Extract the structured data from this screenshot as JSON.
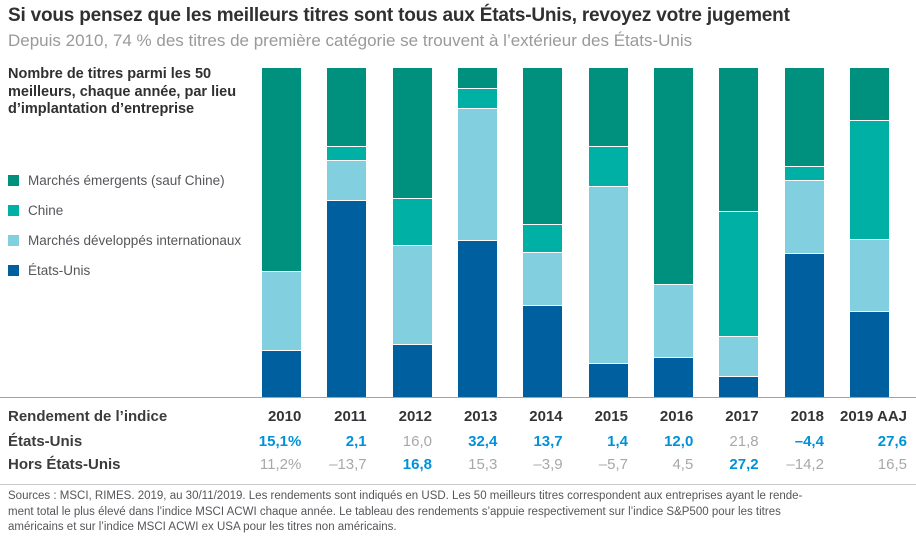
{
  "header": {
    "title": "Si vous pensez que les meilleurs titres sont tous aux États-Unis, revoyez votre jugement",
    "subtitle": "Depuis 2010, 74 % des titres de première catégorie se trouvent à l’extérieur des États-Unis"
  },
  "chart_info": {
    "heading": "Nombre de titres parmi les 50 meilleurs, chaque année, par lieu d’implantation d’entreprise"
  },
  "chart_data": {
    "type": "bar",
    "stacked": true,
    "title": "Nombre de titres parmi les 50 meilleurs, chaque année, par lieu d’implantation d’entreprise",
    "categories": [
      "2010",
      "2011",
      "2012",
      "2013",
      "2014",
      "2015",
      "2016",
      "2017",
      "2018",
      "2019 AAJ"
    ],
    "series": [
      {
        "name": "Marchés émergents (sauf Chine)",
        "color": "#00917e",
        "values": [
          31,
          12,
          20,
          3,
          24,
          12,
          33,
          22,
          15,
          8
        ]
      },
      {
        "name": "Chine",
        "color": "#00b0a5",
        "values": [
          0,
          2,
          7,
          3,
          4,
          6,
          0,
          19,
          2,
          18
        ]
      },
      {
        "name": "Marchés développés internationaux",
        "color": "#82cfe0",
        "values": [
          12,
          6,
          15,
          20,
          8,
          27,
          11,
          6,
          11,
          11
        ]
      },
      {
        "name": "États-Unis",
        "color": "#005f9e",
        "values": [
          7,
          30,
          8,
          24,
          14,
          5,
          6,
          3,
          22,
          13
        ]
      }
    ],
    "stack_order": "top-to-bottom",
    "total_per_bar": 50,
    "ylim": [
      0,
      50
    ],
    "grid": false,
    "legend_position": "left"
  },
  "table": {
    "header_label": "Rendement de l’indice",
    "columns": [
      "2010",
      "2011",
      "2012",
      "2013",
      "2014",
      "2015",
      "2016",
      "2017",
      "2018",
      "2019 AAJ"
    ],
    "rows": [
      {
        "label": "États-Unis",
        "values": [
          "15,1%",
          "2,1",
          "16,0",
          "32,4",
          "13,7",
          "1,4",
          "12,0",
          "21,8",
          "–4,4",
          "27,6"
        ],
        "highlight": [
          true,
          true,
          false,
          true,
          true,
          true,
          true,
          false,
          true,
          true
        ]
      },
      {
        "label": "Hors États-Unis",
        "values": [
          "11,2%",
          "–13,7",
          "16,8",
          "15,3",
          "–3,9",
          "–5,7",
          "4,5",
          "27,2",
          "–14,2",
          "16,5"
        ],
        "highlight": [
          false,
          false,
          true,
          false,
          false,
          false,
          false,
          true,
          false,
          false
        ]
      }
    ]
  },
  "footnote": {
    "lines": [
      "Sources : MSCI, RIMES. 2019, au 30/11/2019. Les rendements sont indiqués en USD. Les 50 meilleurs titres correspondent aux entreprises ayant le rende-",
      "ment total le plus élevé dans l’indice MSCI ACWI chaque année. Le tableau des rendements s’appuie respectivement sur l’indice S&P500 pour les titres",
      "américains et sur l’indice MSCI ACWI ex USA pour les titres non américains."
    ]
  },
  "colors": {
    "title_text": "#2f3032",
    "subtitle_text": "#97999b",
    "legend_text": "#55565a",
    "value_highlight_blue": "#0091da",
    "value_muted_gray": "#a7a8aa",
    "axis_line": "#a2a3a5",
    "separator_line": "#c9cacc",
    "emerging_markets": "#00917e",
    "china": "#00b0a5",
    "developed_intl": "#82cfe0",
    "united_states": "#005f9e"
  }
}
